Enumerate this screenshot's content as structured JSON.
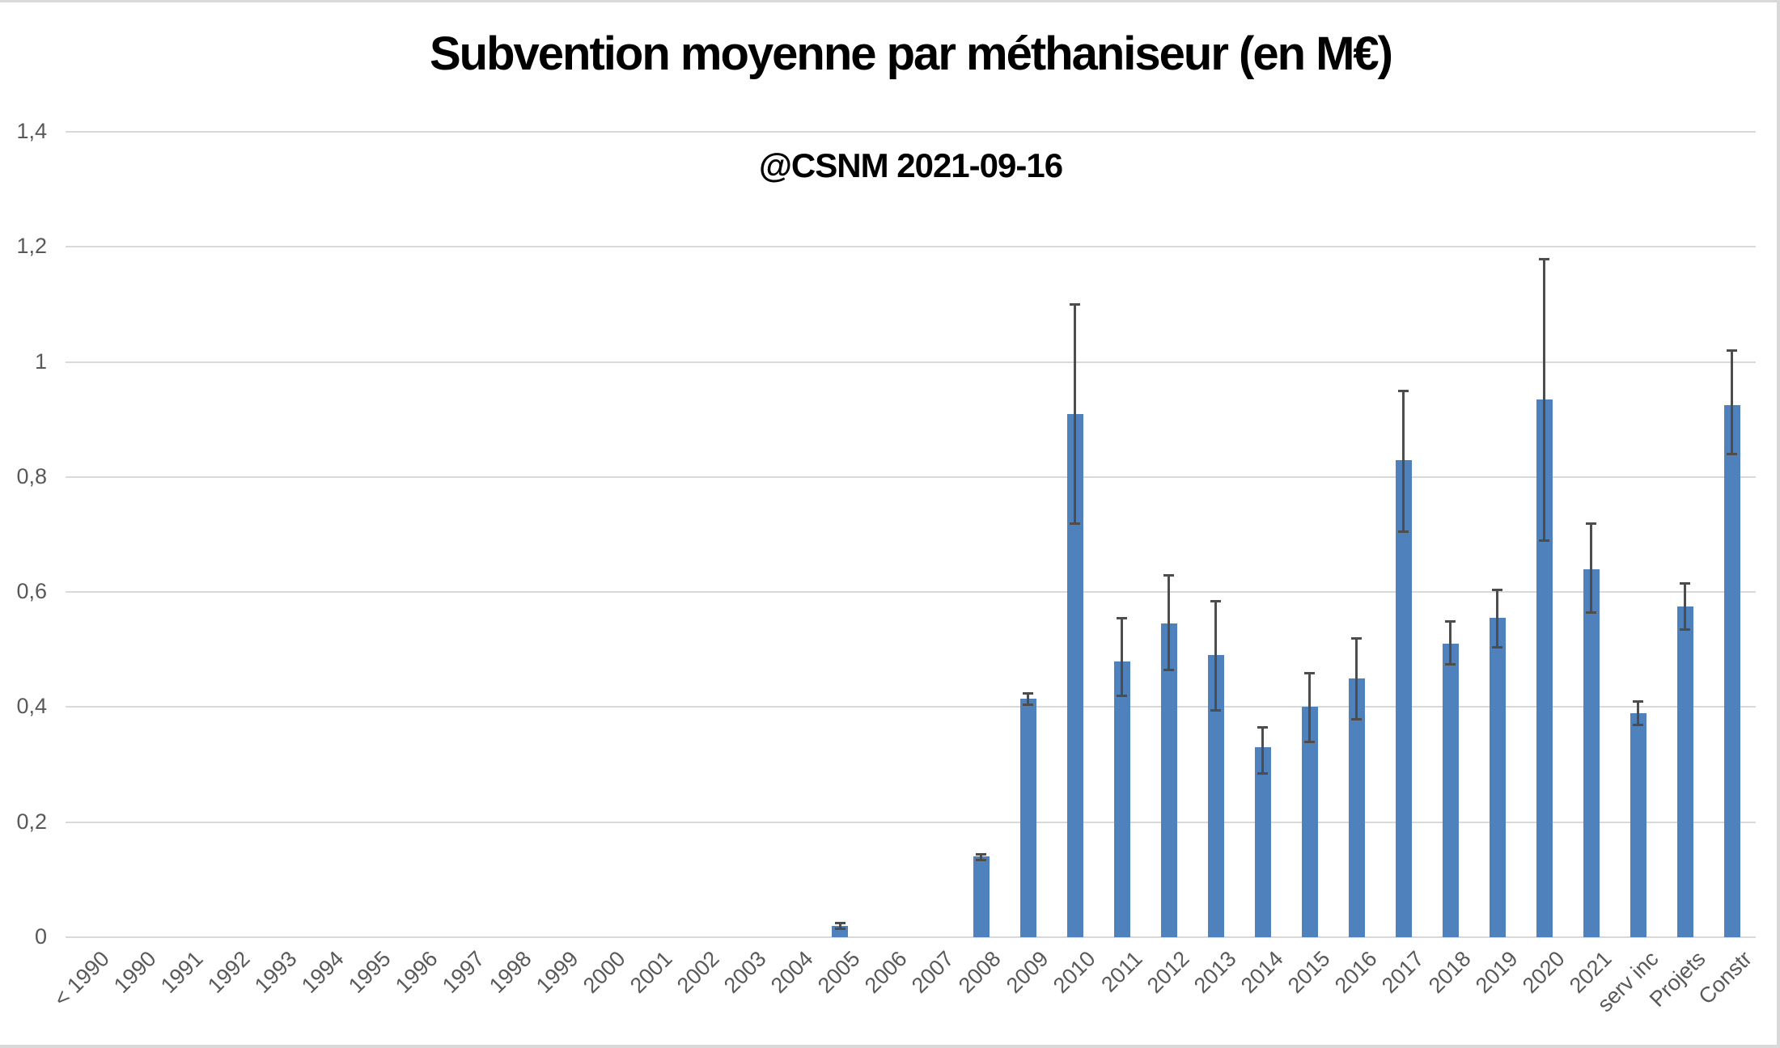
{
  "chart_data": {
    "type": "bar",
    "title": "Subvention moyenne par méthaniseur (en M€)",
    "subtitle": "@CSNM 2021-09-16",
    "categories": [
      "< 1990",
      "1990",
      "1991",
      "1992",
      "1993",
      "1994",
      "1995",
      "1996",
      "1997",
      "1998",
      "1999",
      "2000",
      "2001",
      "2002",
      "2003",
      "2004",
      "2005",
      "2006",
      "2007",
      "2008",
      "2009",
      "2010",
      "2011",
      "2012",
      "2013",
      "2014",
      "2015",
      "2016",
      "2017",
      "2018",
      "2019",
      "2020",
      "2021",
      "serv inc",
      "Projets",
      "Constr"
    ],
    "values": [
      0,
      0,
      0,
      0,
      0,
      0,
      0,
      0,
      0,
      0,
      0,
      0,
      0,
      0,
      0,
      0,
      0.02,
      0,
      0,
      0.14,
      0.415,
      0.91,
      0.48,
      0.545,
      0.49,
      0.33,
      0.4,
      0.45,
      0.83,
      0.51,
      0.555,
      0.935,
      0.64,
      0.39,
      0.575,
      0.925
    ],
    "error_low": [
      null,
      null,
      null,
      null,
      null,
      null,
      null,
      null,
      null,
      null,
      null,
      null,
      null,
      null,
      null,
      null,
      0.015,
      null,
      null,
      0.135,
      0.405,
      0.72,
      0.42,
      0.465,
      0.395,
      0.285,
      0.34,
      0.38,
      0.705,
      0.475,
      0.505,
      0.69,
      0.565,
      0.37,
      0.535,
      0.84
    ],
    "error_high": [
      null,
      null,
      null,
      null,
      null,
      null,
      null,
      null,
      null,
      null,
      null,
      null,
      null,
      null,
      null,
      null,
      0.025,
      null,
      null,
      0.145,
      0.425,
      1.1,
      0.555,
      0.63,
      0.585,
      0.365,
      0.46,
      0.52,
      0.95,
      0.55,
      0.605,
      1.18,
      0.72,
      0.41,
      0.615,
      1.02
    ],
    "ylim": [
      0,
      1.4
    ],
    "ytick_step": 0.2,
    "ytick_labels": [
      "0",
      "0,2",
      "0,4",
      "0,6",
      "0,8",
      "1",
      "1,2",
      "1,4"
    ],
    "grid": true,
    "legend": "none",
    "decimal_separator": ",",
    "bar_color": "#4F81BD",
    "error_color": "#4d4d4d",
    "gridline_color": "#d9d9d9",
    "axis_label_color": "#595959",
    "title_color": "#000000"
  }
}
